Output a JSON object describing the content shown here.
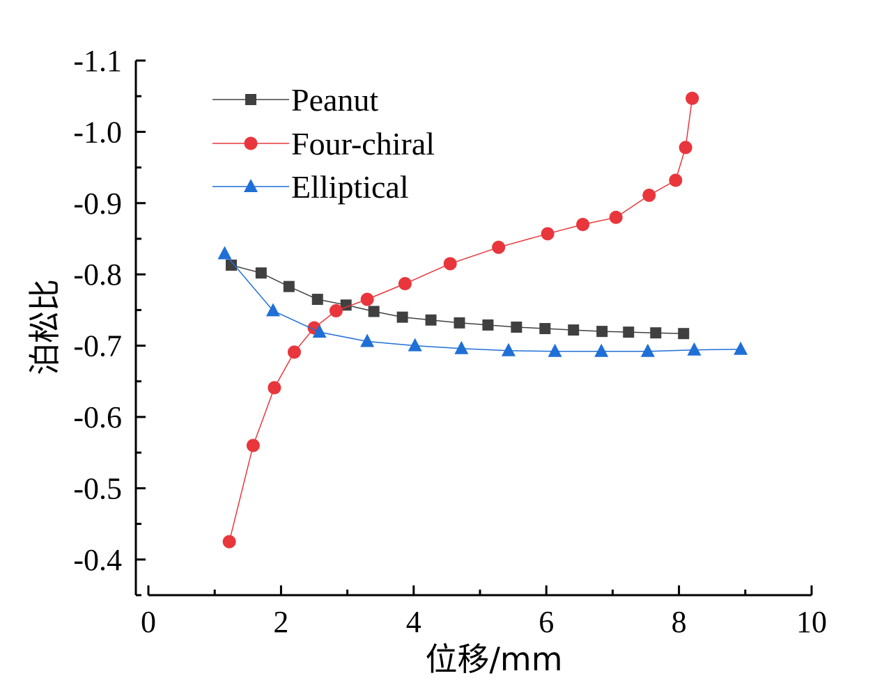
{
  "chart_data": {
    "type": "line",
    "title": "",
    "xlabel": "位移/mm",
    "ylabel": "泊松比",
    "xlim": [
      0,
      10
    ],
    "ylim": [
      -0.35,
      -1.1
    ],
    "x_ticks": [
      0,
      2,
      4,
      6,
      8,
      10
    ],
    "x_tick_labels": [
      "0",
      "2",
      "4",
      "6",
      "8",
      "10"
    ],
    "y_ticks": [
      -0.4,
      -0.5,
      -0.6,
      -0.7,
      -0.8,
      -0.9,
      -1.0,
      -1.1
    ],
    "y_tick_labels": [
      "-0.4",
      "-0.5",
      "-0.6",
      "-0.7",
      "-0.8",
      "-0.9",
      "-1.0",
      "-1.1"
    ],
    "grid": false,
    "legend_position": "top-left",
    "series": [
      {
        "name": "Peanut",
        "color": "#404040",
        "marker": "square",
        "x": [
          1.25,
          1.7,
          2.12,
          2.55,
          2.98,
          3.4,
          3.83,
          4.26,
          4.69,
          5.12,
          5.55,
          5.98,
          6.41,
          6.84,
          7.24,
          7.65,
          8.07
        ],
        "y": [
          -0.813,
          -0.802,
          -0.783,
          -0.765,
          -0.757,
          -0.748,
          -0.74,
          -0.736,
          -0.732,
          -0.729,
          -0.726,
          -0.724,
          -0.722,
          -0.72,
          -0.719,
          -0.718,
          -0.717
        ]
      },
      {
        "name": "Four-chiral",
        "color": "#e8363c",
        "marker": "circle",
        "x": [
          1.22,
          1.58,
          1.9,
          2.2,
          2.5,
          2.83,
          3.3,
          3.87,
          4.55,
          5.28,
          6.02,
          6.55,
          7.05,
          7.55,
          7.95,
          8.1,
          8.2
        ],
        "y": [
          -0.425,
          -0.56,
          -0.641,
          -0.691,
          -0.725,
          -0.749,
          -0.765,
          -0.787,
          -0.815,
          -0.838,
          -0.857,
          -0.87,
          -0.88,
          -0.911,
          -0.932,
          -0.978,
          -1.047
        ]
      },
      {
        "name": "Elliptical",
        "color": "#1f6fd6",
        "marker": "triangle",
        "x": [
          1.15,
          1.88,
          2.58,
          3.3,
          4.02,
          4.72,
          5.43,
          6.13,
          6.83,
          7.53,
          8.23,
          8.93
        ],
        "y": [
          -0.829,
          -0.749,
          -0.719,
          -0.706,
          -0.7,
          -0.696,
          -0.693,
          -0.692,
          -0.692,
          -0.692,
          -0.694,
          -0.695
        ]
      }
    ]
  }
}
